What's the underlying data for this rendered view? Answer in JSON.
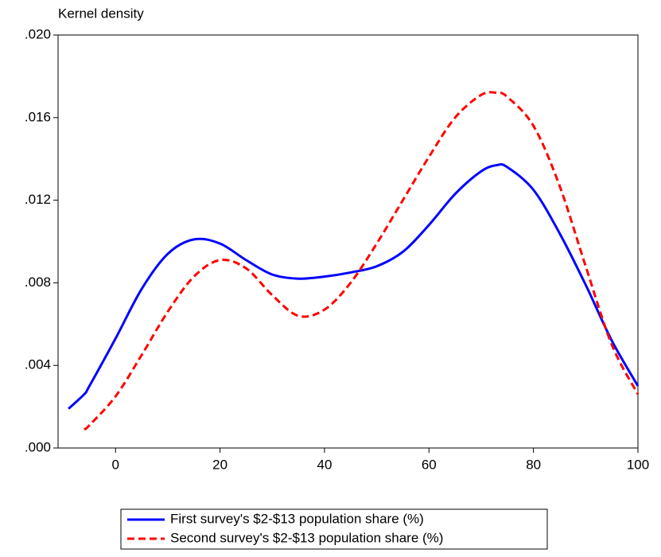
{
  "chart_data": {
    "type": "line",
    "ylabel": "Kernel density",
    "x": [
      -9,
      -6,
      -5,
      0,
      5,
      10,
      15,
      20,
      25,
      30,
      35,
      40,
      45,
      50,
      55,
      60,
      65,
      70,
      73,
      75,
      80,
      85,
      90,
      95,
      100
    ],
    "series": [
      {
        "name": "First survey's $2-$13 population share (%)",
        "color": "#0000ff",
        "dash": "solid",
        "values": [
          0.0019,
          0.0026,
          0.003,
          0.0053,
          0.0077,
          0.0094,
          0.0101,
          0.0099,
          0.0091,
          0.0084,
          0.0082,
          0.0083,
          0.0085,
          0.0088,
          0.0095,
          0.0108,
          0.0123,
          0.0134,
          0.0137,
          0.0136,
          0.0125,
          0.0104,
          0.0079,
          0.0052,
          0.003
        ]
      },
      {
        "name": "Second survey's $2-$13 population share (%)",
        "color": "#ff0000",
        "dash": "dashed",
        "values": [
          null,
          0.0009,
          0.0011,
          0.0025,
          0.0045,
          0.0066,
          0.0083,
          0.0091,
          0.0087,
          0.0074,
          0.0064,
          0.0067,
          0.008,
          0.0099,
          0.012,
          0.0141,
          0.016,
          0.0171,
          0.0172,
          0.017,
          0.0156,
          0.0127,
          0.0088,
          0.005,
          0.0026
        ]
      }
    ],
    "xlim": [
      -11,
      100
    ],
    "xticks": [
      0,
      20,
      40,
      60,
      80,
      100
    ],
    "ylim": [
      0,
      0.02
    ],
    "yticks": [
      {
        "value": 0,
        "label": ".000"
      },
      {
        "value": 0.004,
        "label": ".004"
      },
      {
        "value": 0.008,
        "label": ".008"
      },
      {
        "value": 0.012,
        "label": ".012"
      },
      {
        "value": 0.016,
        "label": ".016"
      },
      {
        "value": 0.02,
        "label": ".020"
      }
    ],
    "legend": "bottom"
  }
}
